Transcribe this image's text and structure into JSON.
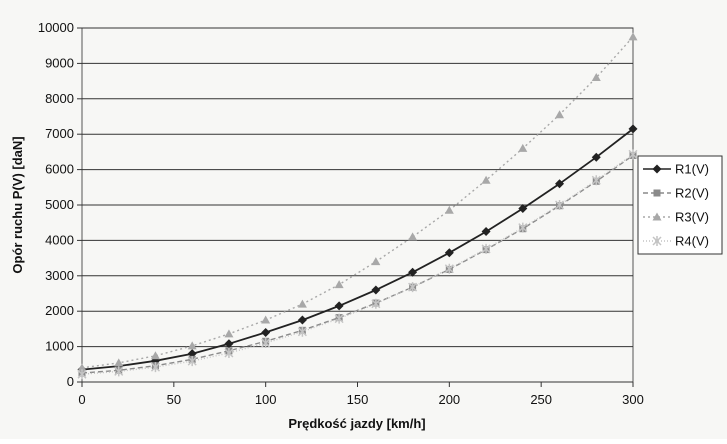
{
  "chart_data": {
    "type": "line",
    "title": "",
    "xlabel": "Prędkość jazdy [km/h]",
    "ylabel": "Opór ruchu P(V) [daN]",
    "xlim": [
      0,
      300
    ],
    "ylim": [
      0,
      10000
    ],
    "xticks": [
      0,
      50,
      100,
      150,
      200,
      250,
      300
    ],
    "yticks": [
      0,
      1000,
      2000,
      3000,
      4000,
      5000,
      6000,
      7000,
      8000,
      9000,
      10000
    ],
    "grid": "horizontal",
    "legend_position": "right",
    "x": [
      0,
      20,
      40,
      60,
      80,
      100,
      120,
      140,
      160,
      180,
      200,
      220,
      240,
      260,
      280,
      300
    ],
    "series": [
      {
        "name": "R1(V)",
        "color": "#222222",
        "marker": "diamond",
        "dash": "",
        "values": [
          350,
          450,
          600,
          800,
          1080,
          1400,
          1750,
          2150,
          2600,
          3100,
          3650,
          4250,
          4900,
          5600,
          6350,
          7150
        ]
      },
      {
        "name": "R2(V)",
        "color": "#8a8a8a",
        "marker": "square",
        "dash": "5,3",
        "values": [
          250,
          330,
          460,
          640,
          880,
          1150,
          1460,
          1820,
          2230,
          2680,
          3180,
          3740,
          4330,
          4980,
          5670,
          6400
        ]
      },
      {
        "name": "R3(V)",
        "color": "#a8a8a8",
        "marker": "triangle",
        "dash": "2,3",
        "values": [
          400,
          540,
          740,
          1020,
          1360,
          1750,
          2200,
          2750,
          3400,
          4100,
          4850,
          5700,
          6600,
          7550,
          8600,
          9750
        ]
      },
      {
        "name": "R4(V)",
        "color": "#c4c4c4",
        "marker": "star",
        "dash": "1,2",
        "values": [
          220,
          300,
          420,
          590,
          820,
          1100,
          1420,
          1790,
          2210,
          2680,
          3200,
          3760,
          4360,
          5000,
          5700,
          6430
        ]
      }
    ]
  }
}
